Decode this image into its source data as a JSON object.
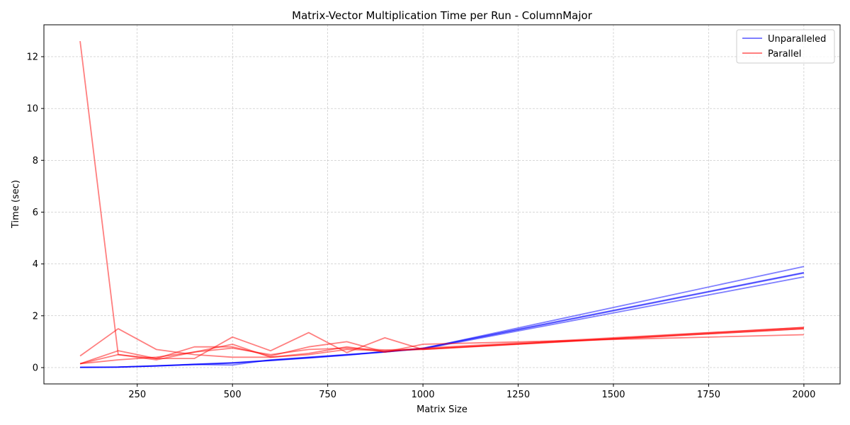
{
  "chart_data": {
    "type": "line",
    "title": "Matrix-Vector Multiplication Time per Run - ColumnMajor",
    "xlabel": "Matrix Size",
    "ylabel": "Time (sec)",
    "xlim": [
      5,
      2095
    ],
    "ylim": [
      -0.63,
      13.23
    ],
    "xticks": [
      250,
      500,
      750,
      1000,
      1250,
      1500,
      1750,
      2000
    ],
    "yticks": [
      0,
      2,
      4,
      6,
      8,
      10,
      12
    ],
    "grid": true,
    "legend_position": "top-right",
    "x": [
      100,
      200,
      300,
      400,
      500,
      600,
      700,
      800,
      900,
      1000,
      2000
    ],
    "groups": [
      {
        "name": "Unparalleled",
        "color": "#0000ff",
        "opacity": 0.5
      },
      {
        "name": "Parallel",
        "color": "#ff0000",
        "opacity": 0.5
      }
    ],
    "series": [
      {
        "group": "Unparalleled",
        "values": [
          0.01,
          0.02,
          0.07,
          0.12,
          0.18,
          0.27,
          0.37,
          0.48,
          0.6,
          0.73,
          3.65
        ]
      },
      {
        "group": "Unparalleled",
        "values": [
          0.01,
          0.02,
          0.06,
          0.12,
          0.1,
          0.3,
          0.4,
          0.5,
          0.6,
          0.74,
          3.9
        ]
      },
      {
        "group": "Unparalleled",
        "values": [
          0.01,
          0.02,
          0.07,
          0.13,
          0.19,
          0.28,
          0.38,
          0.48,
          0.62,
          0.72,
          3.5
        ]
      },
      {
        "group": "Unparalleled",
        "values": [
          0.01,
          0.02,
          0.06,
          0.12,
          0.17,
          0.28,
          0.39,
          0.5,
          0.61,
          0.75,
          3.67
        ]
      },
      {
        "group": "Parallel",
        "values": [
          12.6,
          0.5,
          0.3,
          0.6,
          0.9,
          0.4,
          0.55,
          0.8,
          0.6,
          0.75,
          1.55
        ]
      },
      {
        "group": "Parallel",
        "values": [
          0.45,
          1.5,
          0.7,
          0.5,
          0.4,
          0.4,
          0.5,
          0.7,
          0.65,
          0.7,
          1.5
        ]
      },
      {
        "group": "Parallel",
        "values": [
          0.15,
          0.65,
          0.35,
          0.8,
          0.8,
          0.45,
          0.8,
          1.0,
          0.6,
          0.9,
          1.27
        ]
      },
      {
        "group": "Parallel",
        "values": [
          0.15,
          0.5,
          0.35,
          0.35,
          1.18,
          0.65,
          1.35,
          0.58,
          1.15,
          0.7,
          1.55
        ]
      },
      {
        "group": "Parallel",
        "values": [
          0.15,
          0.3,
          0.4,
          0.6,
          0.75,
          0.5,
          0.7,
          0.75,
          0.68,
          0.72,
          1.5
        ]
      }
    ]
  }
}
